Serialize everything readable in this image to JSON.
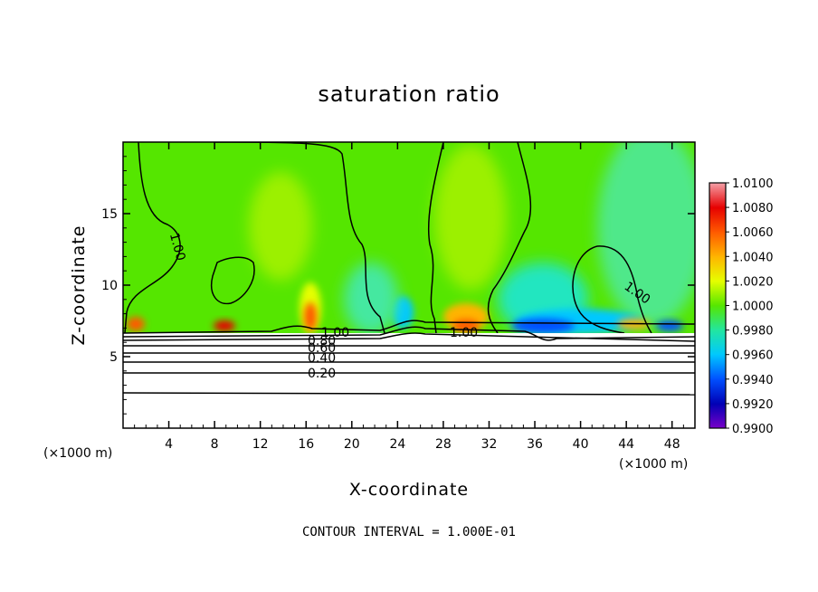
{
  "chart_data": {
    "type": "heatmap",
    "title": "saturation ratio",
    "xlabel": "X-coordinate",
    "ylabel": "Z-coordinate",
    "x_unit_left": "(×1000 m)",
    "x_unit_right": "(×1000 m)",
    "xlim": [
      0,
      50
    ],
    "ylim": [
      0,
      20
    ],
    "x_ticks": [
      4,
      8,
      12,
      16,
      20,
      24,
      28,
      32,
      36,
      40,
      44,
      48
    ],
    "y_ticks": [
      5,
      10,
      15
    ],
    "colorbar": {
      "levels": [
        "1.0100",
        "1.0080",
        "1.0060",
        "1.0040",
        "1.0020",
        "1.0000",
        "0.9980",
        "0.9960",
        "0.9940",
        "0.9920",
        "0.9900"
      ],
      "colors": [
        "#f4a0a8",
        "#e60000",
        "#ff5a00",
        "#ffb400",
        "#e6ff00",
        "#55e600",
        "#22e6a0",
        "#00c8ff",
        "#0050ff",
        "#0000b4",
        "#7a00c8"
      ]
    },
    "contour_labels": [
      "1.00",
      "1.00",
      "1.00",
      "1.00",
      "0.80",
      "0.60",
      "0.40",
      "0.20"
    ],
    "footnote": "CONTOUR INTERVAL = 1.000E-01"
  }
}
